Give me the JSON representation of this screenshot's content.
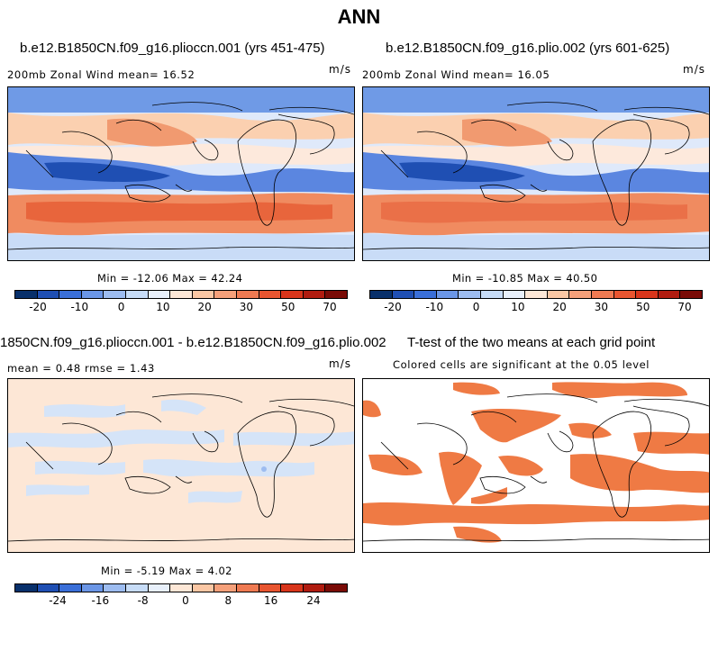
{
  "title": "ANN",
  "panels": [
    {
      "case": "b.e12.B1850CN.f09_g16.plioccn.001 (yrs 451-475)",
      "left_text": "200mb Zonal Wind  mean=  16.52",
      "units": "m/s",
      "stats": "Min = -12.06 Max = 42.24"
    },
    {
      "case": "b.e12.B1850CN.f09_g16.plio.002 (yrs 601-625)",
      "left_text": "200mb Zonal Wind  mean=  16.05",
      "units": "m/s",
      "stats": "Min = -10.85 Max = 40.50"
    },
    {
      "case": "1850CN.f09_g16.plioccn.001 - b.e12.B1850CN.f09_g16.plio.002",
      "left_text": "mean =   0.48    rmse =   1.43",
      "units": "m/s",
      "stats": "Min = -5.19 Max =  4.02"
    },
    {
      "case": "T-test of the two means at each grid point",
      "left_text": "Colored cells are significant at the 0.05 level"
    }
  ],
  "colorbar_wind": {
    "colors": [
      "#08306b",
      "#1f4fb3",
      "#3a6fd8",
      "#6b96e6",
      "#9dbcf0",
      "#c7dcf7",
      "#e8f0fb",
      "#fde7d6",
      "#fbc7a4",
      "#f5a07a",
      "#ef7a52",
      "#e85530",
      "#d8351b",
      "#b01c10",
      "#7a0b06"
    ],
    "ticks": [
      "-20",
      "-10",
      "0",
      "10",
      "20",
      "30",
      "50",
      "70"
    ]
  },
  "colorbar_diff": {
    "colors": [
      "#08306b",
      "#1f4fb3",
      "#3a6fd8",
      "#6b96e6",
      "#9dbcf0",
      "#c7dcf7",
      "#e8f0fb",
      "#fde7d6",
      "#fbc7a4",
      "#f5a07a",
      "#ef7a52",
      "#e85530",
      "#d8351b",
      "#b01c10",
      "#7a0b06"
    ],
    "ticks": [
      "-24",
      "-16",
      "-8",
      "0",
      "8",
      "16",
      "24"
    ]
  }
}
